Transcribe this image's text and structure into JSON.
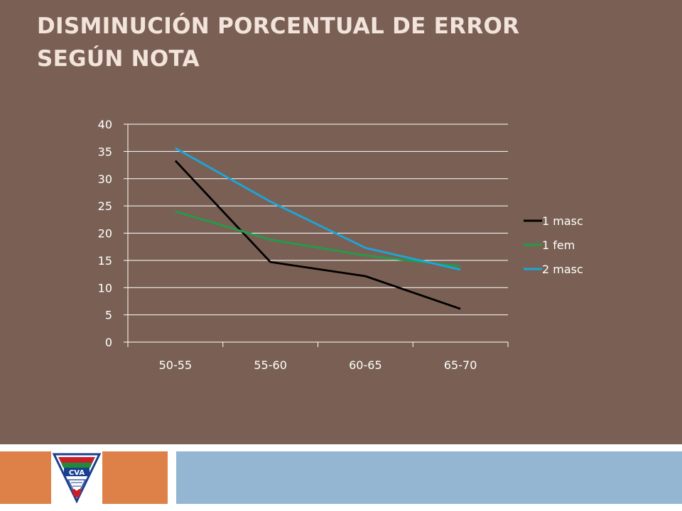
{
  "slide": {
    "title_line1": "DISMINUCIÓN PORCENTUAL DE ERROR",
    "title_line2": "SEGÚN NOTA",
    "colors": {
      "background": "#7a6054",
      "title": "#f2e4db",
      "footer_left": "#dd8149",
      "footer_right": "#95b6d2"
    }
  },
  "logo": {
    "text": "CVA",
    "icon": "club-crest-icon"
  },
  "chart_data": {
    "type": "line",
    "categories": [
      "50-55",
      "55-60",
      "60-65",
      "65-70"
    ],
    "series": [
      {
        "name": "1 masc",
        "values": [
          33.3,
          14.7,
          12.1,
          6.1
        ],
        "color": "#000000"
      },
      {
        "name": "1 fem",
        "values": [
          24.0,
          18.8,
          15.9,
          13.9
        ],
        "color": "#1f9e4a"
      },
      {
        "name": "2 masc",
        "values": [
          35.6,
          25.8,
          17.3,
          13.3
        ],
        "color": "#1aa6dc"
      }
    ],
    "ylim": [
      0,
      40
    ],
    "yticks": [
      0,
      5,
      10,
      15,
      20,
      25,
      30,
      35,
      40
    ],
    "grid": true,
    "legend": "right"
  }
}
